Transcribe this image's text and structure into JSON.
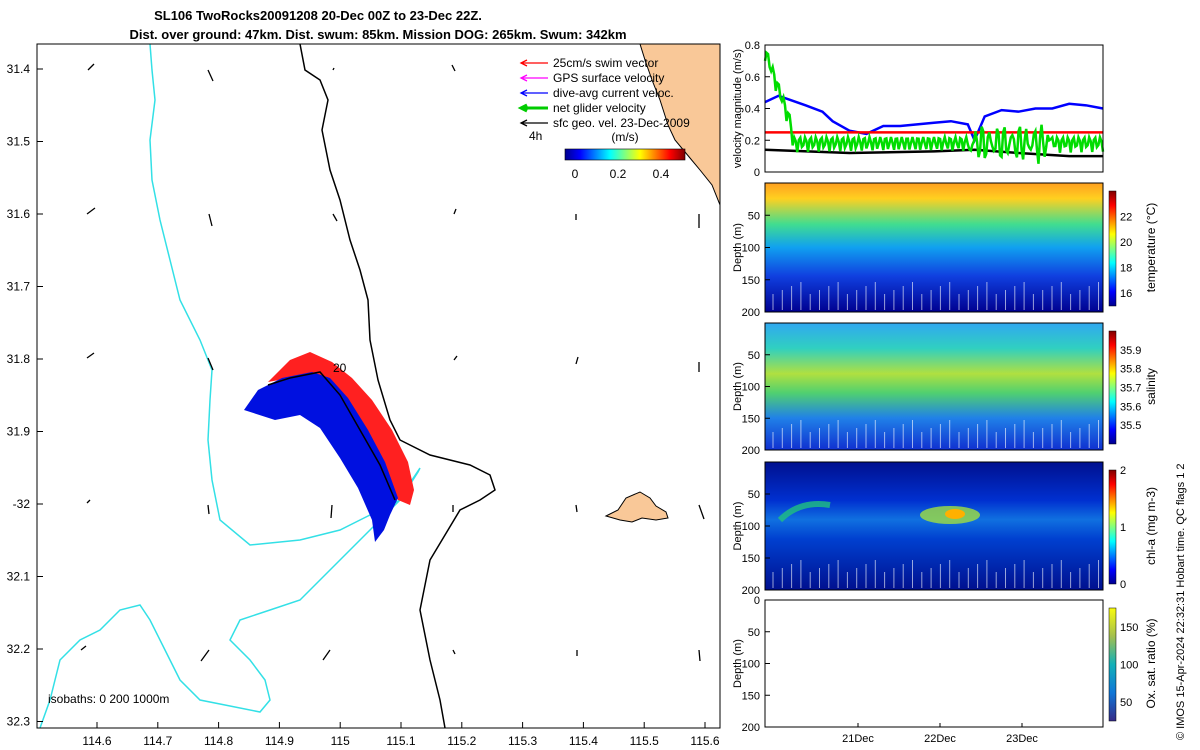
{
  "title": {
    "line1": "SL106 TwoRocks20091208 20-Dec 00Z to 23-Dec 22Z.",
    "line2": "Dist. over ground: 47km. Dist. swum: 85km. Mission DOG: 265km. Swum: 342km"
  },
  "map": {
    "lon_ticks": [
      "114.6",
      "114.7",
      "114.8",
      "114.9",
      "115",
      "115.1",
      "115.2",
      "115.3",
      "115.4",
      "115.5",
      "115.6"
    ],
    "lat_ticks": [
      "31.4",
      "31.5",
      "31.6",
      "31.7",
      "31.8",
      "31.9",
      "-32",
      "32.1",
      "32.2",
      "32.3"
    ],
    "legend": [
      {
        "label": "25cm/s swim vector",
        "color": "#ff0000"
      },
      {
        "label": "GPS surface velocity",
        "color": "#ff00ff"
      },
      {
        "label": "dive-avg current veloc.",
        "color": "#0000ff"
      },
      {
        "label": "net glider velocity",
        "color": "#00cc00"
      },
      {
        "label": "sfc geo. vel. 23-Dec-2009",
        "color": "#000000"
      }
    ],
    "time_label": "4h",
    "speed_colorbar": {
      "label": "(m/s)",
      "ticks": [
        "0",
        "0.2",
        "0.4"
      ]
    },
    "isobath_label": "isobaths: 0   200  1000m",
    "contour_label": "20",
    "colors": {
      "coast_fill": "#f9c898",
      "isobath_200": "#33e0e6",
      "swim": "#ff0000",
      "current": "#0000ee"
    }
  },
  "chart_data": [
    {
      "type": "line",
      "ylabel": "velocity magnitude (m/s)",
      "ylim": [
        0,
        0.8
      ],
      "yticks": [
        "0",
        "0.2",
        "0.4",
        "0.6",
        "0.8"
      ],
      "series": [
        {
          "color": "#0000ff",
          "x": [
            0,
            0.04,
            0.08,
            0.12,
            0.17,
            0.2,
            0.25,
            0.3,
            0.35,
            0.4,
            0.45,
            0.5,
            0.55,
            0.6,
            0.62,
            0.65,
            0.7,
            0.75,
            0.8,
            0.85,
            0.9,
            0.95,
            1.0
          ],
          "values": [
            0.44,
            0.48,
            0.45,
            0.42,
            0.38,
            0.32,
            0.26,
            0.24,
            0.29,
            0.29,
            0.3,
            0.31,
            0.32,
            0.3,
            0.2,
            0.35,
            0.39,
            0.38,
            0.4,
            0.4,
            0.43,
            0.42,
            0.4
          ]
        },
        {
          "color": "#ff0000",
          "x": [
            0,
            1
          ],
          "values": [
            0.25,
            0.25
          ]
        },
        {
          "color": "#000000",
          "x": [
            0,
            0.25,
            0.5,
            0.62,
            0.75,
            0.9,
            1.0
          ],
          "values": [
            0.14,
            0.12,
            0.13,
            0.14,
            0.12,
            0.1,
            0.1
          ]
        }
      ]
    },
    {
      "type": "heatmap",
      "ylabel": "Depth (m)",
      "colorbar_label": "temperature (°C)",
      "yticks": [
        "50",
        "100",
        "150",
        "200"
      ],
      "cbar_ticks": [
        "16",
        "18",
        "20",
        "22"
      ],
      "range": [
        15,
        24
      ]
    },
    {
      "type": "heatmap",
      "ylabel": "Depth (m)",
      "colorbar_label": "salinity",
      "yticks": [
        "50",
        "100",
        "150",
        "200"
      ],
      "cbar_ticks": [
        "35.5",
        "35.6",
        "35.7",
        "35.8",
        "35.9"
      ],
      "range": [
        35.4,
        36.0
      ]
    },
    {
      "type": "heatmap",
      "ylabel": "Depth (m)",
      "colorbar_label": "chl-a (mg m-3)",
      "yticks": [
        "50",
        "100",
        "150",
        "200"
      ],
      "cbar_ticks": [
        "0",
        "1",
        "2"
      ],
      "range": [
        0,
        2
      ]
    },
    {
      "type": "heatmap",
      "ylabel": "Depth (m)",
      "colorbar_label": "Ox. sat. ratio (%)",
      "yticks": [
        "0",
        "50",
        "100",
        "150",
        "200"
      ],
      "cbar_ticks": [
        "50",
        "100",
        "150"
      ],
      "range": [
        25,
        175
      ],
      "xticks": [
        "21Dec",
        "22Dec",
        "23Dec"
      ]
    }
  ],
  "footer": "© IMOS 15-Apr-2024 22:32:31 Hobart time. QC flags 1  2"
}
